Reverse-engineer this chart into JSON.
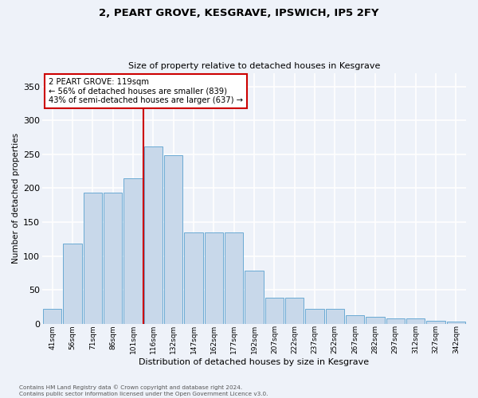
{
  "title": "2, PEART GROVE, KESGRAVE, IPSWICH, IP5 2FY",
  "subtitle": "Size of property relative to detached houses in Kesgrave",
  "xlabel": "Distribution of detached houses by size in Kesgrave",
  "ylabel": "Number of detached properties",
  "categories": [
    "41sqm",
    "56sqm",
    "71sqm",
    "86sqm",
    "101sqm",
    "116sqm",
    "132sqm",
    "147sqm",
    "162sqm",
    "177sqm",
    "192sqm",
    "207sqm",
    "222sqm",
    "237sqm",
    "252sqm",
    "267sqm",
    "282sqm",
    "297sqm",
    "312sqm",
    "327sqm",
    "342sqm"
  ],
  "values": [
    22,
    118,
    193,
    193,
    215,
    262,
    248,
    135,
    135,
    135,
    78,
    38,
    38,
    22,
    22,
    12,
    10,
    8,
    8,
    4,
    3
  ],
  "bar_color": "#c8d8ea",
  "bar_edge_color": "#6aaad4",
  "vline_color": "#cc0000",
  "vline_x_index": 4.5,
  "annotation_text": "2 PEART GROVE: 119sqm\n← 56% of detached houses are smaller (839)\n43% of semi-detached houses are larger (637) →",
  "annotation_box_color": "#ffffff",
  "annotation_box_edge_color": "#cc0000",
  "footer": "Contains HM Land Registry data © Crown copyright and database right 2024.\nContains public sector information licensed under the Open Government Licence v3.0.",
  "ylim": [
    0,
    370
  ],
  "background_color": "#eef2f9",
  "grid_color": "#ffffff"
}
